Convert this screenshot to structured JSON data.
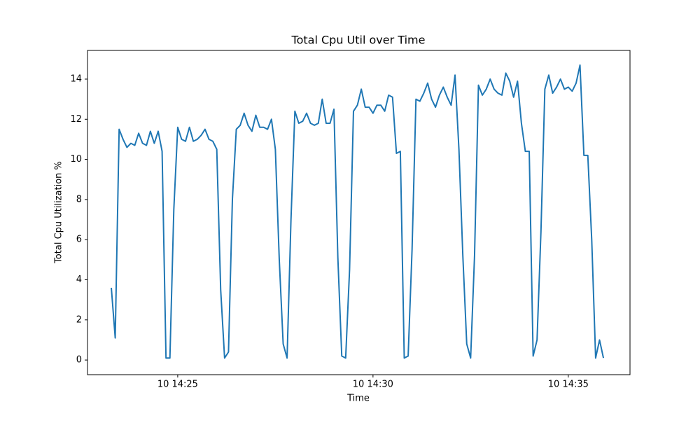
{
  "chart_data": {
    "type": "line",
    "title": "Total Cpu Util over Time",
    "x_label": "Time",
    "y_label": "Total Cpu Utilization %",
    "x": [
      863.3,
      863.4,
      863.5,
      863.6,
      863.7,
      863.8,
      863.9,
      864.0,
      864.1,
      864.2,
      864.3,
      864.4,
      864.5,
      864.6,
      864.7,
      864.8,
      864.9,
      865.0,
      865.1,
      865.2,
      865.3,
      865.4,
      865.5,
      865.6,
      865.7,
      865.8,
      865.9,
      866.0,
      866.1,
      866.2,
      866.3,
      866.4,
      866.5,
      866.6,
      866.7,
      866.8,
      866.9,
      867.0,
      867.1,
      867.2,
      867.3,
      867.4,
      867.5,
      867.6,
      867.7,
      867.8,
      867.9,
      868.0,
      868.1,
      868.2,
      868.3,
      868.4,
      868.5,
      868.6,
      868.7,
      868.8,
      868.9,
      869.0,
      869.1,
      869.2,
      869.3,
      869.4,
      869.5,
      869.6,
      869.7,
      869.8,
      869.9,
      870.0,
      870.1,
      870.2,
      870.3,
      870.4,
      870.5,
      870.6,
      870.7,
      870.8,
      870.9,
      871.0,
      871.1,
      871.2,
      871.3,
      871.4,
      871.5,
      871.6,
      871.7,
      871.8,
      871.9,
      872.0,
      872.1,
      872.2,
      872.3,
      872.4,
      872.5,
      872.6,
      872.7,
      872.8,
      872.9,
      873.0,
      873.1,
      873.2,
      873.3,
      873.4,
      873.5,
      873.6,
      873.7,
      873.8,
      873.9,
      874.0,
      874.1,
      874.2,
      874.3,
      874.4,
      874.5,
      874.6,
      874.7,
      874.8,
      874.9,
      875.0,
      875.1,
      875.2,
      875.3,
      875.4,
      875.5,
      875.6,
      875.7,
      875.8,
      875.9
    ],
    "series": [
      {
        "color": "#1f77b4",
        "values": [
          3.6,
          1.1,
          11.5,
          11.0,
          10.6,
          10.8,
          10.7,
          11.3,
          10.8,
          10.7,
          11.4,
          10.8,
          11.4,
          10.4,
          0.1,
          0.1,
          7.5,
          11.6,
          11.0,
          10.9,
          11.6,
          10.9,
          11.0,
          11.2,
          11.5,
          11.0,
          10.9,
          10.5,
          3.5,
          0.1,
          0.4,
          8.0,
          11.5,
          11.7,
          12.3,
          11.7,
          11.4,
          12.2,
          11.6,
          11.6,
          11.5,
          12.0,
          10.5,
          5.0,
          0.8,
          0.1,
          7.0,
          12.4,
          11.8,
          11.9,
          12.3,
          11.8,
          11.7,
          11.8,
          13.0,
          11.8,
          11.8,
          12.5,
          5.1,
          0.2,
          0.1,
          4.5,
          12.4,
          12.7,
          13.5,
          12.6,
          12.6,
          12.3,
          12.7,
          12.7,
          12.4,
          13.2,
          13.1,
          10.3,
          10.4,
          0.1,
          0.2,
          5.5,
          13.0,
          12.9,
          13.3,
          13.8,
          13.0,
          12.6,
          13.2,
          13.6,
          13.1,
          12.7,
          14.2,
          10.5,
          5.2,
          0.8,
          0.1,
          5.2,
          13.7,
          13.2,
          13.5,
          14.0,
          13.5,
          13.3,
          13.2,
          14.3,
          13.9,
          13.1,
          13.9,
          11.8,
          10.4,
          10.4,
          0.2,
          1.0,
          6.4,
          13.5,
          14.2,
          13.3,
          13.6,
          14.0,
          13.5,
          13.6,
          13.4,
          13.8,
          14.7,
          10.2,
          10.2,
          6.0,
          0.1,
          1.0,
          0.1
        ]
      }
    ],
    "xlim": [
      862.69,
      876.58
    ],
    "ylim": [
      -0.73,
      15.43
    ],
    "xticks": [
      {
        "value": 865,
        "label": "10 14:25"
      },
      {
        "value": 870,
        "label": "10 14:30"
      },
      {
        "value": 875,
        "label": "10 14:35"
      }
    ],
    "yticks": [
      0,
      2,
      4,
      6,
      8,
      10,
      12,
      14
    ],
    "grid": false
  }
}
